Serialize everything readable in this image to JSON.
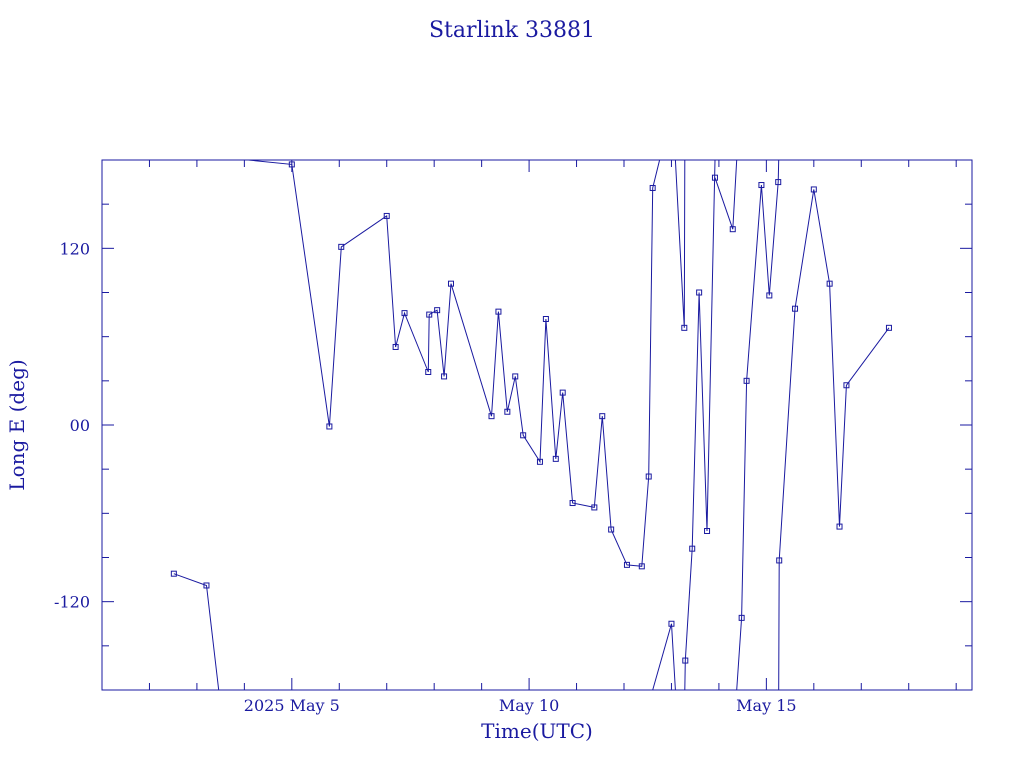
{
  "chart_data": {
    "type": "line",
    "title": "Starlink 33881",
    "xlabel": "Time(UTC)",
    "ylabel": "Long E (deg)",
    "x_tick_labels": [
      {
        "date": "2025-05-05",
        "label": "2025 May  5"
      },
      {
        "date": "2025-05-10",
        "label": "May 10"
      },
      {
        "date": "2025-05-15",
        "label": "May 15"
      }
    ],
    "y_tick_labels": [
      {
        "value": 120,
        "label": "120"
      },
      {
        "value": 0,
        "label": "00"
      },
      {
        "value": -120,
        "label": "-120"
      }
    ],
    "xlim": [
      "2025-05-01T00:00",
      "2025-05-19T08:00"
    ],
    "ylim": [
      -180,
      180
    ],
    "grid": false,
    "color": "#1a1aa0",
    "series": [
      {
        "values": [
          [
            "2025-05-02T12:20",
            -101
          ],
          [
            "2025-05-03T04:50",
            -109
          ],
          [
            "2025-05-03T11:00",
            -180
          ]
        ]
      },
      {
        "values": [
          [
            "2025-05-03T11:00",
            180
          ],
          [
            "2025-05-04T02:00",
            180
          ],
          [
            "2025-05-05T00:00",
            177
          ],
          [
            "2025-05-05T19:00",
            -1
          ],
          [
            "2025-05-06T01:00",
            121
          ],
          [
            "2025-05-07T00:00",
            142
          ],
          [
            "2025-05-07T04:30",
            53
          ],
          [
            "2025-05-07T09:00",
            76
          ],
          [
            "2025-05-07T21:00",
            36
          ],
          [
            "2025-05-07T21:30",
            75
          ],
          [
            "2025-05-08T01:30",
            78
          ],
          [
            "2025-05-08T05:00",
            33
          ],
          [
            "2025-05-08T08:30",
            96
          ],
          [
            "2025-05-09T05:00",
            6
          ],
          [
            "2025-05-09T08:30",
            77
          ],
          [
            "2025-05-09T13:00",
            9
          ],
          [
            "2025-05-09T17:00",
            33
          ],
          [
            "2025-05-09T21:00",
            -7
          ],
          [
            "2025-05-10T05:30",
            -25
          ],
          [
            "2025-05-10T08:30",
            72
          ],
          [
            "2025-05-10T13:30",
            -23
          ],
          [
            "2025-05-10T17:00",
            22
          ],
          [
            "2025-05-10T22:00",
            -53
          ],
          [
            "2025-05-11T09:00",
            -56
          ],
          [
            "2025-05-11T13:00",
            6
          ],
          [
            "2025-05-11T17:30",
            -71
          ],
          [
            "2025-05-12T01:30",
            -95
          ],
          [
            "2025-05-12T09:00",
            -96
          ],
          [
            "2025-05-12T12:30",
            -35
          ],
          [
            "2025-05-12T14:30",
            161
          ],
          [
            "2025-05-12T18:00",
            180
          ]
        ]
      },
      {
        "values": [
          [
            "2025-05-12T14:30",
            -180
          ],
          [
            "2025-05-13T00:00",
            -135
          ],
          [
            "2025-05-13T02:00",
            -180
          ]
        ]
      },
      {
        "values": [
          [
            "2025-05-13T02:00",
            180
          ],
          [
            "2025-05-13T06:30",
            66
          ],
          [
            "2025-05-13T06:45",
            180
          ]
        ]
      },
      {
        "values": [
          [
            "2025-05-13T06:45",
            -180
          ],
          [
            "2025-05-13T07:00",
            -160
          ],
          [
            "2025-05-13T10:30",
            -84
          ],
          [
            "2025-05-13T14:00",
            90
          ],
          [
            "2025-05-13T18:00",
            -72
          ],
          [
            "2025-05-13T22:00",
            180
          ]
        ]
      },
      {
        "values": [
          [
            "2025-05-13T22:00",
            168
          ],
          [
            "2025-05-14T07:00",
            133
          ],
          [
            "2025-05-14T09:00",
            180
          ]
        ]
      },
      {
        "values": [
          [
            "2025-05-14T09:00",
            -180
          ],
          [
            "2025-05-14T11:30",
            -131
          ],
          [
            "2025-05-14T14:00",
            30
          ],
          [
            "2025-05-14T21:30",
            163
          ],
          [
            "2025-05-15T01:30",
            88
          ],
          [
            "2025-05-15T06:00",
            165
          ],
          [
            "2025-05-15T06:15",
            180
          ]
        ]
      },
      {
        "values": [
          [
            "2025-05-15T06:15",
            -180
          ],
          [
            "2025-05-15T06:30",
            -92
          ],
          [
            "2025-05-15T14:30",
            79
          ],
          [
            "2025-05-16T00:00",
            160
          ],
          [
            "2025-05-16T08:00",
            96
          ],
          [
            "2025-05-16T13:00",
            -69
          ],
          [
            "2025-05-16T16:30",
            27
          ],
          [
            "2025-05-17T14:00",
            66
          ]
        ]
      }
    ]
  }
}
